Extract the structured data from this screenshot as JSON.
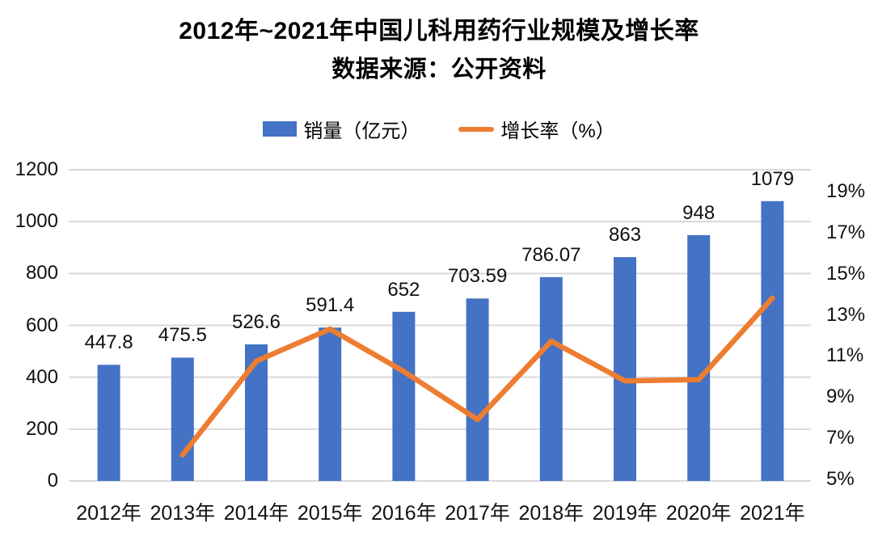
{
  "header": {
    "title": "2012年~2021年中国儿科用药行业规模及增长率",
    "subtitle": "数据来源：公开资料"
  },
  "legend": {
    "bar_label": "销量（亿元）",
    "line_label": "增长率（%）"
  },
  "colors": {
    "bar": "#4472C4",
    "line": "#ED7D31",
    "gridline": "#D9D9D9",
    "text": "#111111"
  },
  "chart_data": {
    "type": "bar+line",
    "title": "2012年~2021年中国儿科用药行业规模及增长率",
    "subtitle": "数据来源：公开资料",
    "categories": [
      "2012年",
      "2013年",
      "2014年",
      "2015年",
      "2016年",
      "2017年",
      "2018年",
      "2019年",
      "2020年",
      "2021年"
    ],
    "series": [
      {
        "name": "销量（亿元）",
        "type": "bar",
        "axis": "left",
        "values": [
          447.8,
          475.5,
          526.6,
          591.4,
          652,
          703.59,
          786.07,
          863,
          948,
          1079
        ],
        "data_labels": [
          "447.8",
          "475.5",
          "526.6",
          "591.4",
          "652",
          "703.59",
          "786.07",
          "863",
          "948",
          "1079"
        ]
      },
      {
        "name": "增长率（%）",
        "type": "line",
        "axis": "right",
        "values": [
          null,
          6.19,
          10.75,
          12.31,
          10.25,
          7.91,
          11.72,
          9.79,
          9.85,
          13.82
        ]
      }
    ],
    "left_axis": {
      "min": 0,
      "max": 1200,
      "step": 200,
      "tick_labels": [
        "0",
        "200",
        "400",
        "600",
        "800",
        "1000",
        "1200"
      ]
    },
    "right_axis": {
      "min": 5,
      "max": 19,
      "step": 2,
      "tick_labels": [
        "5%",
        "7%",
        "9%",
        "11%",
        "13%",
        "15%",
        "17%",
        "19%"
      ]
    },
    "grid": true,
    "legend_position": "top"
  }
}
